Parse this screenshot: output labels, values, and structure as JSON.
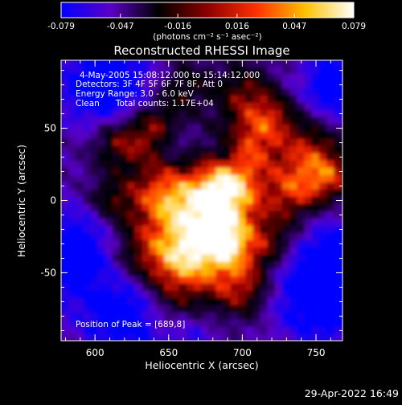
{
  "chart_data": {
    "type": "heatmap",
    "title": "Reconstructed RHESSI Image",
    "xlabel": "Heliocentric X (arcsec)",
    "ylabel": "Heliocentric Y (arcsec)",
    "x_ticks": [
      "600",
      "650",
      "700",
      "750"
    ],
    "y_ticks": [
      "50",
      "0",
      "-50"
    ],
    "xlim": [
      577,
      768
    ],
    "ylim": [
      -97,
      97
    ],
    "colorbar": {
      "ticks": [
        "-0.079",
        "-0.047",
        "-0.016",
        "0.016",
        "0.047",
        "0.079"
      ],
      "range": [
        -0.079,
        0.079
      ],
      "units_label": "(photons cm⁻² s⁻¹ asec⁻²)",
      "colormap": [
        "#0000ff",
        "#5a00c8",
        "#000000",
        "#8c0000",
        "#ff3000",
        "#ffc000",
        "#ffffff"
      ]
    },
    "annotations": {
      "time_range": "4-May-2005 15:08:12.000 to 15:14:12.000",
      "detectors": "Detectors: 3F 4F 5F 6F 7F 8F, Att 0",
      "energy_range": "Energy Range: 3.0 - 6.0 keV",
      "method_counts": "Clean      Total counts: 1.17E+04",
      "peak_position": "Position of Peak = [689,8]"
    },
    "peak": {
      "x": 689,
      "y": 8
    },
    "grid": false
  },
  "footer": {
    "date": "29-Apr-2022 16:49"
  }
}
